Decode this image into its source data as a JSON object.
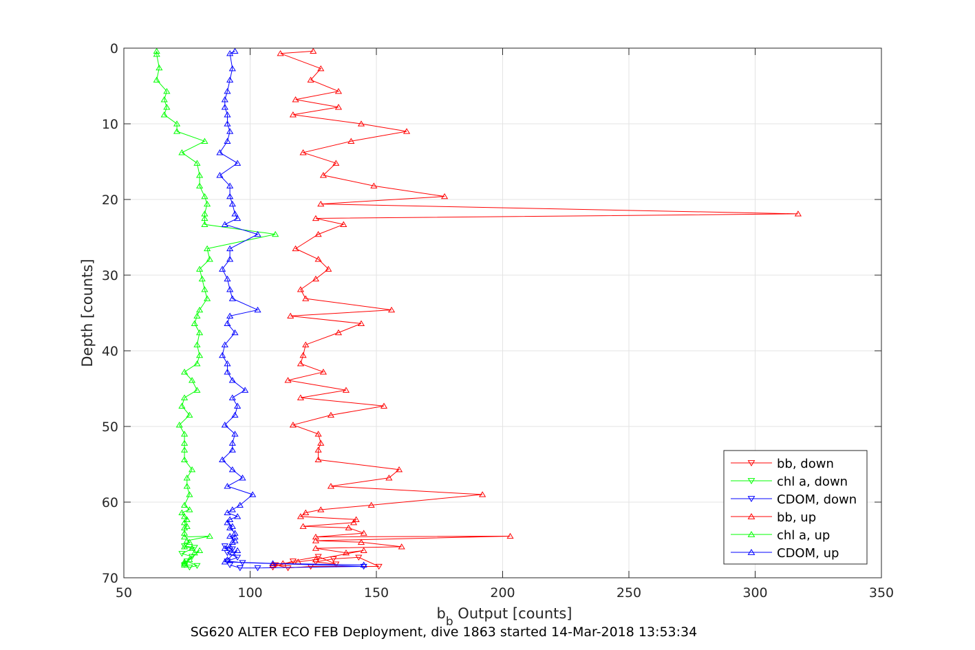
{
  "chart_data": {
    "type": "line",
    "title": "",
    "xlabel_main": "b",
    "xlabel_sub": "b",
    "xlabel_rest": " Output [counts]",
    "ylabel": "Depth [counts]",
    "caption": "SG620 ALTER ECO FEB Deployment, dive 1863 started 14-Mar-2018 13:53:34",
    "xlim": [
      50,
      350
    ],
    "ylim": [
      0,
      70
    ],
    "y_reversed": true,
    "grid": true,
    "legend_position": "bottom-right",
    "x_ticks": [
      "50",
      "100",
      "150",
      "200",
      "250",
      "300",
      "350"
    ],
    "y_ticks": [
      "0",
      "10",
      "20",
      "30",
      "40",
      "50",
      "60",
      "70"
    ],
    "series": [
      {
        "name": "bb, down",
        "color": "#ff0000",
        "marker": "triangle-down",
        "points": [
          [
            110,
            68.3
          ],
          [
            115,
            68.7
          ],
          [
            124,
            68.5
          ],
          [
            151,
            68.5
          ],
          [
            143,
            67.3
          ],
          [
            133,
            67.5
          ],
          [
            126,
            67.9
          ],
          [
            134,
            68.2
          ],
          [
            127,
            67.2
          ],
          [
            117,
            67.8
          ],
          [
            109,
            68.6
          ]
        ]
      },
      {
        "name": "chl a, down",
        "color": "#00ff00",
        "marker": "triangle-down",
        "points": [
          [
            74,
            68.3
          ],
          [
            76,
            68.6
          ],
          [
            79,
            68.4
          ],
          [
            75,
            67.8
          ],
          [
            77,
            67.2
          ],
          [
            73,
            66.8
          ],
          [
            78,
            66.0
          ],
          [
            74,
            65.8
          ]
        ]
      },
      {
        "name": "CDOM, down",
        "color": "#0000ff",
        "marker": "triangle-down",
        "points": [
          [
            92,
            68.3
          ],
          [
            96,
            68.7
          ],
          [
            103,
            68.7
          ],
          [
            145,
            68.5
          ],
          [
            97,
            68.0
          ],
          [
            91,
            67.8
          ],
          [
            95,
            67.3
          ],
          [
            91,
            66.7
          ],
          [
            93,
            66.2
          ],
          [
            90,
            65.8
          ]
        ]
      },
      {
        "name": "bb, up",
        "color": "#ff0000",
        "marker": "triangle-up",
        "points": [
          [
            125,
            0.4
          ],
          [
            112,
            0.7
          ],
          [
            128,
            2.7
          ],
          [
            124,
            4.2
          ],
          [
            135,
            5.7
          ],
          [
            118,
            6.8
          ],
          [
            135,
            7.8
          ],
          [
            117,
            8.8
          ],
          [
            144,
            10.0
          ],
          [
            162,
            11.0
          ],
          [
            140,
            12.3
          ],
          [
            121,
            13.8
          ],
          [
            134,
            15.2
          ],
          [
            129,
            16.8
          ],
          [
            149,
            18.2
          ],
          [
            177,
            19.6
          ],
          [
            128,
            20.6
          ],
          [
            317,
            21.9
          ],
          [
            126,
            22.5
          ],
          [
            137,
            23.3
          ],
          [
            127,
            24.6
          ],
          [
            118,
            26.5
          ],
          [
            127,
            27.9
          ],
          [
            131,
            29.2
          ],
          [
            126,
            30.5
          ],
          [
            120,
            31.9
          ],
          [
            122,
            33.1
          ],
          [
            156,
            34.6
          ],
          [
            116,
            35.4
          ],
          [
            144,
            36.4
          ],
          [
            135,
            37.6
          ],
          [
            122,
            39.2
          ],
          [
            121,
            40.6
          ],
          [
            120,
            41.7
          ],
          [
            129,
            42.8
          ],
          [
            115,
            43.9
          ],
          [
            138,
            45.2
          ],
          [
            120,
            46.2
          ],
          [
            153,
            47.3
          ],
          [
            132,
            48.5
          ],
          [
            117,
            49.8
          ],
          [
            127,
            51.0
          ],
          [
            128,
            52.2
          ],
          [
            127,
            53.1
          ],
          [
            127,
            54.4
          ],
          [
            159,
            55.7
          ],
          [
            155,
            56.8
          ],
          [
            132,
            57.9
          ],
          [
            192,
            59.0
          ],
          [
            148,
            60.4
          ],
          [
            128,
            61.0
          ],
          [
            122,
            61.4
          ],
          [
            120,
            61.9
          ],
          [
            142,
            62.3
          ],
          [
            141,
            62.7
          ],
          [
            121,
            63.2
          ],
          [
            139,
            63.4
          ],
          [
            145,
            64.1
          ],
          [
            126,
            64.6
          ],
          [
            203,
            64.5
          ],
          [
            126,
            65.1
          ],
          [
            144,
            65.3
          ],
          [
            160,
            65.9
          ],
          [
            126,
            66.1
          ],
          [
            138,
            66.7
          ],
          [
            145,
            66.4
          ],
          [
            126,
            67.6
          ],
          [
            119,
            67.9
          ],
          [
            113,
            68.1
          ],
          [
            109,
            68.3
          ]
        ]
      },
      {
        "name": "chl a, up",
        "color": "#00ff00",
        "marker": "triangle-up",
        "points": [
          [
            63,
            0.4
          ],
          [
            63,
            0.8
          ],
          [
            64,
            2.6
          ],
          [
            63,
            4.2
          ],
          [
            67,
            5.7
          ],
          [
            66,
            6.8
          ],
          [
            67,
            7.8
          ],
          [
            66,
            8.8
          ],
          [
            71,
            10.0
          ],
          [
            71,
            11.0
          ],
          [
            82,
            12.3
          ],
          [
            73,
            13.8
          ],
          [
            79,
            15.2
          ],
          [
            80,
            16.8
          ],
          [
            80,
            18.2
          ],
          [
            82,
            19.6
          ],
          [
            83,
            20.6
          ],
          [
            82,
            21.9
          ],
          [
            82,
            22.5
          ],
          [
            82,
            23.3
          ],
          [
            110,
            24.6
          ],
          [
            83,
            26.5
          ],
          [
            84,
            27.9
          ],
          [
            80,
            29.2
          ],
          [
            81,
            30.5
          ],
          [
            82,
            31.9
          ],
          [
            83,
            33.1
          ],
          [
            80,
            34.6
          ],
          [
            79,
            35.4
          ],
          [
            78,
            36.4
          ],
          [
            80,
            37.6
          ],
          [
            79,
            39.2
          ],
          [
            80,
            40.6
          ],
          [
            79,
            41.7
          ],
          [
            74,
            42.8
          ],
          [
            77,
            43.9
          ],
          [
            79,
            45.2
          ],
          [
            74,
            46.2
          ],
          [
            73,
            47.3
          ],
          [
            76,
            48.5
          ],
          [
            72,
            49.8
          ],
          [
            74,
            51.0
          ],
          [
            74,
            52.2
          ],
          [
            74,
            53.1
          ],
          [
            74,
            54.4
          ],
          [
            77,
            55.7
          ],
          [
            75,
            56.8
          ],
          [
            75,
            57.9
          ],
          [
            76,
            59.0
          ],
          [
            74,
            60.4
          ],
          [
            76,
            61.0
          ],
          [
            73,
            61.4
          ],
          [
            74,
            61.9
          ],
          [
            75,
            62.3
          ],
          [
            74,
            62.7
          ],
          [
            75,
            63.2
          ],
          [
            74,
            63.4
          ],
          [
            74,
            64.1
          ],
          [
            74,
            64.6
          ],
          [
            84,
            64.5
          ],
          [
            75,
            65.1
          ],
          [
            76,
            65.3
          ],
          [
            74,
            65.9
          ],
          [
            77,
            66.1
          ],
          [
            78,
            66.7
          ],
          [
            80,
            66.4
          ],
          [
            76,
            67.6
          ],
          [
            74,
            67.9
          ],
          [
            74,
            68.1
          ],
          [
            74,
            68.3
          ]
        ]
      },
      {
        "name": "CDOM, up",
        "color": "#0000ff",
        "marker": "triangle-up",
        "points": [
          [
            94,
            0.4
          ],
          [
            92,
            0.7
          ],
          [
            93,
            2.7
          ],
          [
            92,
            4.2
          ],
          [
            91,
            5.7
          ],
          [
            90,
            6.8
          ],
          [
            90,
            7.8
          ],
          [
            91,
            8.8
          ],
          [
            91,
            10.0
          ],
          [
            92,
            11.0
          ],
          [
            91,
            12.3
          ],
          [
            88,
            13.8
          ],
          [
            95,
            15.2
          ],
          [
            88,
            16.8
          ],
          [
            92,
            18.2
          ],
          [
            92,
            19.6
          ],
          [
            93,
            20.6
          ],
          [
            94,
            21.9
          ],
          [
            95,
            22.5
          ],
          [
            90,
            23.3
          ],
          [
            103,
            24.6
          ],
          [
            92,
            26.5
          ],
          [
            92,
            27.9
          ],
          [
            89,
            29.2
          ],
          [
            91,
            30.5
          ],
          [
            92,
            31.9
          ],
          [
            93,
            33.1
          ],
          [
            103,
            34.6
          ],
          [
            92,
            35.4
          ],
          [
            91,
            36.4
          ],
          [
            94,
            37.6
          ],
          [
            90,
            39.2
          ],
          [
            89,
            40.6
          ],
          [
            91,
            41.7
          ],
          [
            91,
            42.8
          ],
          [
            93,
            43.9
          ],
          [
            98,
            45.2
          ],
          [
            93,
            46.2
          ],
          [
            95,
            47.3
          ],
          [
            94,
            48.5
          ],
          [
            90,
            49.8
          ],
          [
            94,
            51.0
          ],
          [
            93,
            52.2
          ],
          [
            93,
            53.1
          ],
          [
            89,
            54.4
          ],
          [
            93,
            55.7
          ],
          [
            97,
            56.8
          ],
          [
            91,
            57.9
          ],
          [
            101,
            59.0
          ],
          [
            96,
            60.4
          ],
          [
            93,
            61.0
          ],
          [
            91,
            61.4
          ],
          [
            95,
            61.9
          ],
          [
            92,
            62.3
          ],
          [
            91,
            62.7
          ],
          [
            93,
            63.2
          ],
          [
            92,
            63.4
          ],
          [
            94,
            64.1
          ],
          [
            94,
            64.6
          ],
          [
            92,
            64.5
          ],
          [
            94,
            65.1
          ],
          [
            93,
            65.3
          ],
          [
            92,
            65.9
          ],
          [
            90,
            66.1
          ],
          [
            93,
            66.7
          ],
          [
            95,
            66.4
          ],
          [
            91,
            67.6
          ],
          [
            90,
            67.9
          ],
          [
            109,
            68.1
          ],
          [
            145,
            68.3
          ]
        ]
      }
    ]
  }
}
